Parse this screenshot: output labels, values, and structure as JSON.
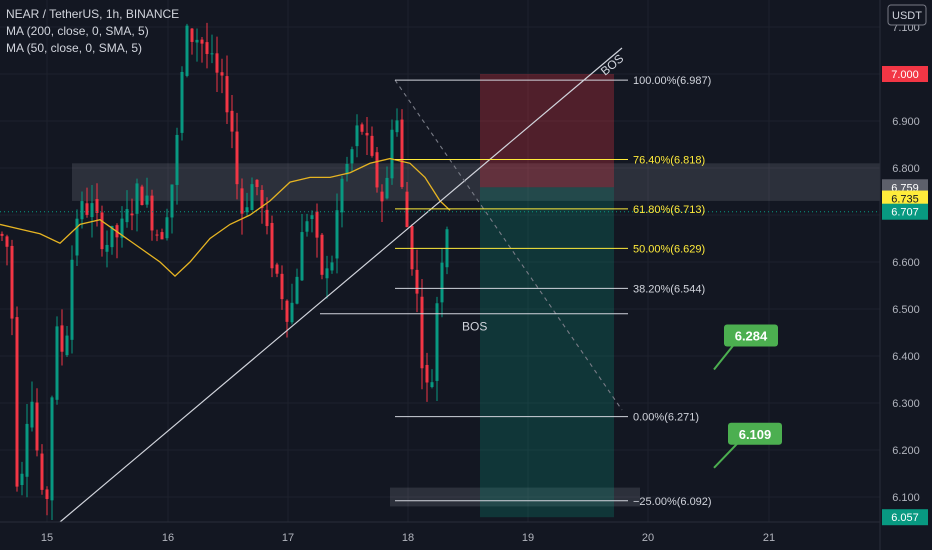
{
  "header": {
    "symbol_line": "NEAR / TetherUS, 1h, BINANCE",
    "ma1_label": "MA (200, close, 0, SMA, 5)",
    "ma2_label": "MA (50, close, 0, SMA, 5)",
    "currency_label": "USDT"
  },
  "chart_data": {
    "type": "candlestick",
    "title": "NEAR / TetherUS, 1h, BINANCE",
    "x_ticks": [
      "15",
      "16",
      "17",
      "18",
      "19",
      "20",
      "21"
    ],
    "y_ticks": [
      "7.100",
      "7.000",
      "6.900",
      "6.800",
      "6.700",
      "6.600",
      "6.500",
      "6.400",
      "6.300",
      "6.200",
      "6.100"
    ],
    "y_range": [
      6.04,
      7.14
    ],
    "price_tags": [
      {
        "label": "7.000",
        "value": 7.0,
        "color": "#f23645"
      },
      {
        "label": "6.759",
        "value": 6.759,
        "color": "#5d606b"
      },
      {
        "label": "6.735",
        "value": 6.735,
        "color": "#ffeb3b"
      },
      {
        "label": "6.707",
        "value": 6.707,
        "color": "#089981"
      },
      {
        "label": "6.057",
        "value": 6.057,
        "color": "#089981"
      }
    ],
    "fib_levels": [
      {
        "label": "100.00%(6.987)",
        "value": 6.987,
        "color": "#d1d4dc"
      },
      {
        "label": "76.40%(6.818)",
        "value": 6.818,
        "color": "#ffeb3b"
      },
      {
        "label": "61.80%(6.713)",
        "value": 6.713,
        "color": "#ffeb3b"
      },
      {
        "label": "50.00%(6.629)",
        "value": 6.629,
        "color": "#ffeb3b"
      },
      {
        "label": "38.20%(6.544)",
        "value": 6.544,
        "color": "#d1d4dc"
      },
      {
        "label": "0.00%(6.271)",
        "value": 6.271,
        "color": "#d1d4dc"
      },
      {
        "label": "−25.00%(6.092)",
        "value": 6.092,
        "color": "#d1d4dc"
      }
    ],
    "position": {
      "stop": 7.0,
      "entry": 6.759,
      "target": 6.057
    },
    "bos_lines": [
      {
        "label": "BOS",
        "value": 6.49
      }
    ],
    "bos_trendline_label": "BOS",
    "zones": [
      {
        "from": 6.73,
        "to": 6.81
      },
      {
        "from": 6.08,
        "to": 6.12
      }
    ],
    "target_callouts": [
      {
        "label": "6.284",
        "value": 6.284
      },
      {
        "label": "6.109",
        "value": 6.109
      }
    ],
    "current_price": 6.707,
    "colors": {
      "up": "#089981",
      "down": "#f23645",
      "ma": "#e6b422",
      "background": "#131722"
    },
    "candles": []
  }
}
